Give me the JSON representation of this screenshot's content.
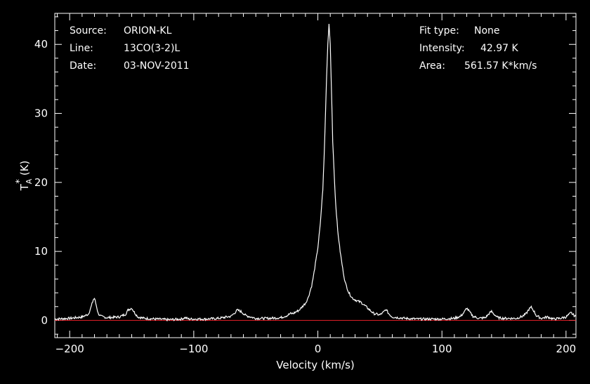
{
  "header": {
    "source_label": "Source:",
    "source_value": "ORION-KL",
    "line_label": "Line:",
    "line_value": "13CO(3-2)L",
    "date_label": "Date:",
    "date_value": "03-NOV-2011",
    "fit_type_label": "Fit type:",
    "fit_type_value": "None",
    "intensity_label": "Intensity:",
    "intensity_value": "42.97 K",
    "area_label": "Area:",
    "area_value": "561.57 K*km/s"
  },
  "colors": {
    "background": "#000000",
    "spectrum": "#ffffff",
    "baseline": "#e8202a",
    "axes": "#ffffff"
  },
  "chart_data": {
    "type": "line",
    "xlabel": "Velocity (km/s)",
    "ylabel_main": "T",
    "ylabel_sup": "*",
    "ylabel_sub": "A",
    "ylabel_unit": "(K)",
    "xlim": [
      -212,
      208
    ],
    "ylim": [
      -2.5,
      44.5
    ],
    "xticks": [
      -200,
      -100,
      0,
      100,
      200
    ],
    "xtick_labels": [
      "−200",
      "−100",
      "0",
      "100",
      "200"
    ],
    "yticks": [
      0,
      10,
      20,
      30,
      40
    ],
    "ytick_labels": [
      "0",
      "10",
      "20",
      "30",
      "40"
    ],
    "baseline_y": 0,
    "series": [
      {
        "x": [
          -212,
          -200,
          -190,
          -185,
          -183,
          -181,
          -180,
          -179,
          -177,
          -175,
          -170,
          -160,
          -155,
          -153,
          -151,
          -150,
          -148,
          -145,
          -140,
          -130,
          -120,
          -110,
          -107,
          -104,
          -100,
          -90,
          -80,
          -70,
          -67,
          -65,
          -62,
          -58,
          -50,
          -40,
          -30,
          -25,
          -22,
          -20,
          -15,
          -10,
          -8,
          -5,
          -3,
          0,
          2,
          4,
          5,
          6,
          7,
          8,
          9,
          10,
          11,
          12,
          14,
          16,
          18,
          20,
          22,
          25,
          28,
          32,
          35,
          40,
          45,
          50,
          53,
          55,
          57,
          60,
          70,
          80,
          90,
          100,
          110,
          115,
          118,
          120,
          122,
          125,
          130,
          135,
          138,
          140,
          142,
          145,
          150,
          160,
          165,
          168,
          170,
          172,
          174,
          176,
          180,
          185,
          190,
          195,
          200,
          202,
          204,
          206,
          208
        ],
        "y": [
          0.2,
          0.3,
          0.5,
          0.9,
          1.8,
          3.0,
          3.2,
          2.5,
          1.0,
          0.6,
          0.4,
          0.5,
          0.9,
          1.5,
          1.7,
          1.8,
          1.2,
          0.5,
          0.3,
          0.2,
          0.1,
          0.2,
          0.4,
          0.2,
          0.2,
          0.2,
          0.3,
          0.6,
          1.1,
          1.5,
          1.3,
          0.7,
          0.3,
          0.3,
          0.4,
          0.7,
          1.0,
          1.0,
          1.5,
          2.5,
          3.2,
          5.0,
          7.0,
          10.5,
          14.0,
          19.0,
          23.5,
          29.0,
          35.0,
          40.0,
          42.97,
          40.0,
          33.0,
          26.0,
          18.0,
          13.0,
          10.0,
          7.5,
          5.5,
          4.0,
          3.2,
          2.8,
          2.6,
          1.8,
          1.0,
          0.8,
          1.2,
          1.6,
          1.0,
          0.5,
          0.3,
          0.2,
          0.2,
          0.2,
          0.3,
          0.6,
          1.2,
          1.8,
          1.3,
          0.6,
          0.3,
          0.4,
          1.0,
          1.3,
          0.9,
          0.4,
          0.3,
          0.3,
          0.6,
          1.0,
          1.6,
          1.9,
          1.4,
          0.7,
          0.3,
          0.5,
          0.2,
          0.3,
          0.5,
          0.8,
          1.1,
          0.8,
          0.5
        ]
      }
    ]
  }
}
